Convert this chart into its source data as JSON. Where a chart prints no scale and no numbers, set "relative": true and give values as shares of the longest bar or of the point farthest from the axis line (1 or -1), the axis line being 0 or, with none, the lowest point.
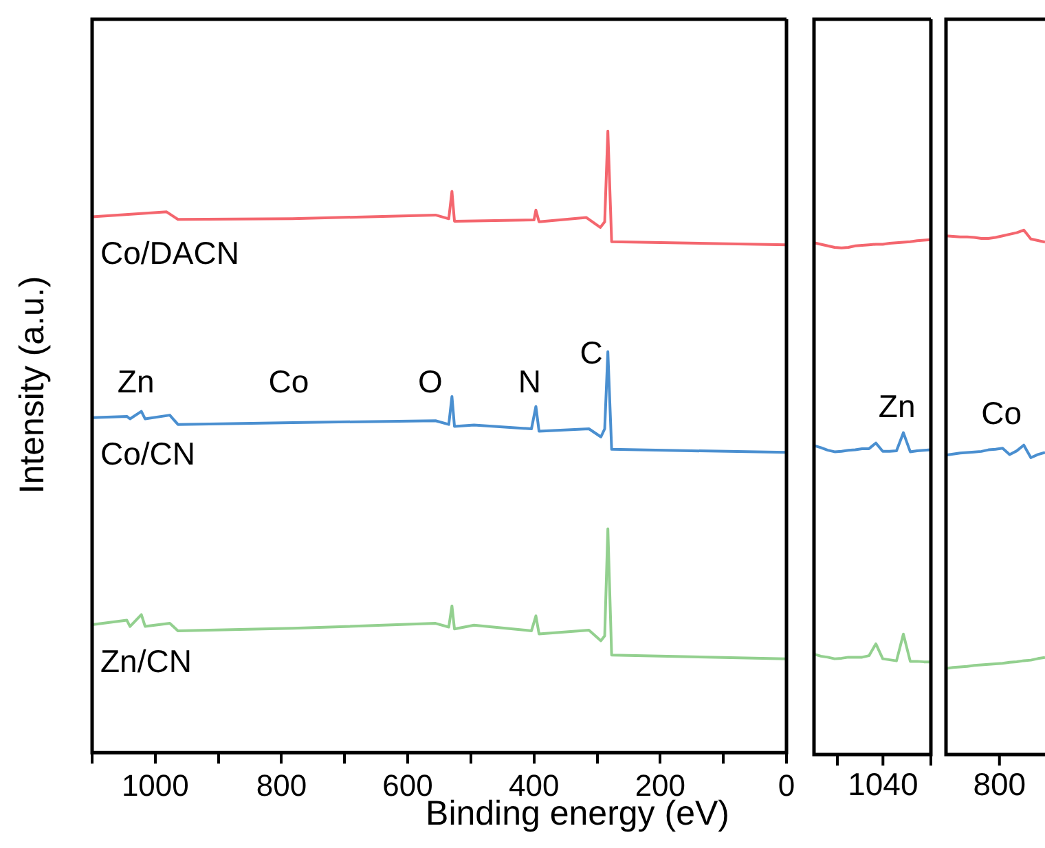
{
  "chart_data": [
    {
      "type": "line",
      "relative": true,
      "xlabel": "Binding energy (eV)",
      "ylabel": "Intensity (a.u.)",
      "xlim": [
        1100,
        0
      ],
      "xticks": [
        {
          "value": 1100,
          "label": null
        },
        1000,
        {
          "value": 900,
          "label": null
        },
        800,
        {
          "value": 700,
          "label": null
        },
        600,
        {
          "value": 500,
          "label": null
        },
        400,
        {
          "value": 300,
          "label": null
        },
        200,
        {
          "value": 100,
          "label": null
        },
        0
      ],
      "annotations": [
        "Zn",
        "Co",
        "O",
        "N",
        "C"
      ],
      "series": [
        {
          "name": "Co/DACN",
          "color": "#f4666e",
          "x": [
            1100,
            982,
            964,
            783,
            556,
            535,
            530,
            526,
            400,
            397,
            392,
            317,
            295,
            288,
            283,
            277,
            0
          ],
          "values": [
            0.862,
            0.87,
            0.858,
            0.859,
            0.865,
            0.859,
            0.903,
            0.855,
            0.857,
            0.873,
            0.854,
            0.861,
            0.845,
            0.854,
            1.0,
            0.822,
            0.817
          ]
        },
        {
          "name": "Co/CN",
          "color": "#4a8fd0",
          "x": [
            1100,
            1045,
            1040,
            1022,
            1016,
            977,
            964,
            782,
            556,
            535,
            530,
            526,
            495,
            404,
            397,
            392,
            313,
            294,
            288,
            283,
            277,
            0
          ],
          "values": [
            0.539,
            0.541,
            0.537,
            0.549,
            0.537,
            0.543,
            0.528,
            0.531,
            0.534,
            0.528,
            0.573,
            0.525,
            0.527,
            0.521,
            0.557,
            0.517,
            0.521,
            0.508,
            0.521,
            0.645,
            0.488,
            0.483
          ]
        },
        {
          "name": "Zn/CN",
          "color": "#93d08f",
          "x": [
            1100,
            1045,
            1040,
            1022,
            1016,
            977,
            964,
            782,
            556,
            535,
            530,
            526,
            495,
            404,
            397,
            392,
            313,
            294,
            288,
            283,
            277,
            0
          ],
          "values": [
            0.206,
            0.213,
            0.203,
            0.222,
            0.203,
            0.208,
            0.196,
            0.2,
            0.208,
            0.202,
            0.236,
            0.199,
            0.205,
            0.196,
            0.22,
            0.191,
            0.197,
            0.18,
            0.188,
            0.36,
            0.157,
            0.151
          ]
        }
      ]
    },
    {
      "type": "line",
      "relative": true,
      "categories": [
        null,
        null,
        null,
        null,
        null,
        null,
        null,
        null,
        null,
        null,
        null,
        null,
        null,
        null,
        null,
        null,
        null,
        null
      ],
      "annotations": [
        "Zn",
        "1040"
      ],
      "series": [
        {
          "color": "#f4666e",
          "values": [
            0.994,
            0.991,
            0.988,
            0.985,
            0.984,
            0.985,
            0.988,
            0.989,
            0.99,
            0.991,
            0.991,
            0.993,
            0.994,
            0.995,
            0.996,
            0.998,
            0.999,
            1
          ]
        },
        {
          "color": "#4a8fd0",
          "values": [
            0.6,
            0.596,
            0.591,
            0.588,
            0.589,
            0.591,
            0.592,
            0.594,
            0.594,
            0.605,
            0.589,
            0.589,
            0.59,
            0.625,
            0.588,
            0.59,
            0.591,
            0.592
          ]
        },
        {
          "color": "#93d08f",
          "values": [
            0.195,
            0.191,
            0.189,
            0.186,
            0.187,
            0.189,
            0.189,
            0.189,
            0.192,
            0.215,
            0.186,
            0.184,
            0.182,
            0.234,
            0.181,
            0.181,
            0.18,
            0.18
          ]
        }
      ]
    },
    {
      "type": "line",
      "relative": true,
      "categories": [
        null,
        null,
        null,
        null,
        null,
        null,
        null,
        null,
        null,
        null,
        null,
        null,
        null,
        null,
        null
      ],
      "annotations": [
        "Co",
        "800"
      ],
      "series": [
        {
          "color": "#f4666e",
          "values": [
            0.989,
            0.988,
            0.987,
            0.987,
            0.986,
            0.984,
            0.984,
            0.986,
            0.989,
            0.992,
            0.995,
            1,
            0.983,
            0.98,
            0.977
          ]
        },
        {
          "color": "#4a8fd0",
          "values": [
            0.571,
            0.573,
            0.575,
            0.576,
            0.577,
            0.578,
            0.581,
            0.582,
            0.584,
            0.572,
            0.579,
            0.59,
            0.566,
            0.572,
            0.576
          ]
        },
        {
          "color": "#93d08f",
          "values": [
            0.164,
            0.166,
            0.167,
            0.168,
            0.17,
            0.171,
            0.172,
            0.173,
            0.174,
            0.176,
            0.177,
            0.179,
            0.18,
            0.183,
            0.185
          ]
        }
      ]
    }
  ]
}
